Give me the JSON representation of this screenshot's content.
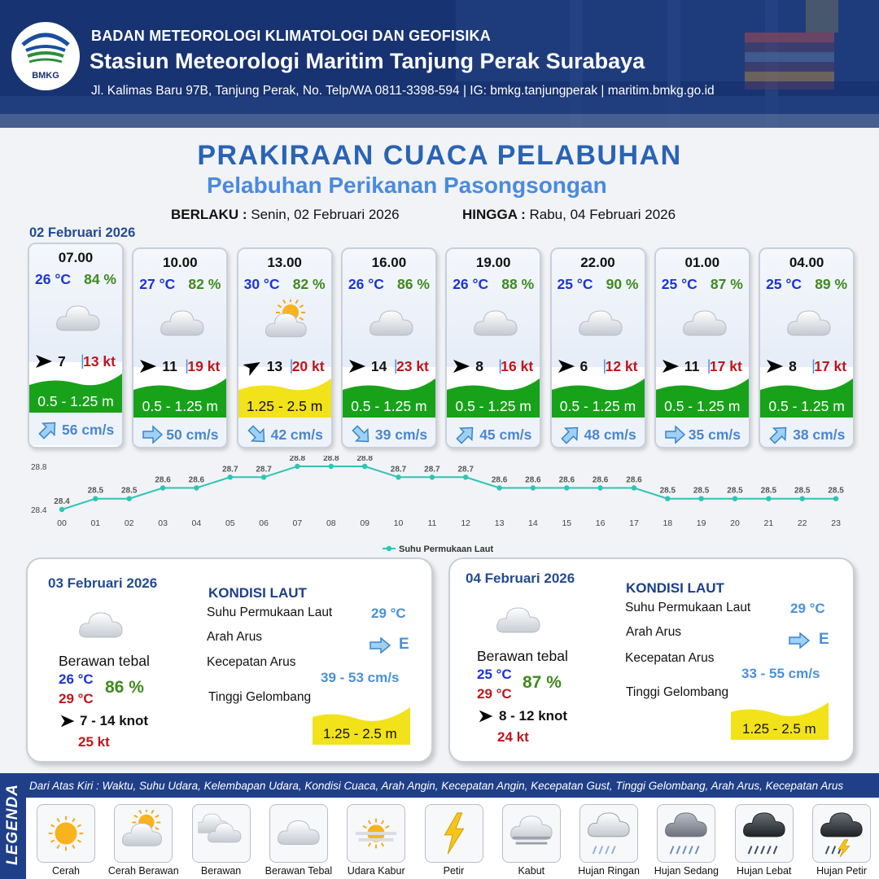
{
  "header": {
    "agency": "BADAN METEOROLOGI KLIMATOLOGI DAN GEOFISIKA",
    "station": "Stasiun Meteorologi Maritim Tanjung Perak Surabaya",
    "address": "Jl. Kalimas Baru 97B, Tanjung Perak, No. Telp/WA 0811-3398-594 | IG: bmkg.tanjungperak | maritim.bmkg.go.id",
    "logo_text": "BMKG"
  },
  "title": "PRAKIRAAN CUACA PELABUHAN",
  "subtitle": "Pelabuhan Perikanan Pasongsongan",
  "validity": {
    "from_label": "BERLAKU :",
    "from_value": "Senin, 02 Februari 2026",
    "to_label": "HINGGA :",
    "to_value": "Rabu, 04 Februari 2026"
  },
  "day1_date": "02 Februari 2026",
  "forecasts": [
    {
      "time": "07.00",
      "temp": "26 °C",
      "hum": "84 %",
      "icon": "berawan-tebal-icon",
      "wind": "7",
      "gust": "13 kt",
      "wave": "0.5 - 1.25 m",
      "wave_color": "#18a21a",
      "current": "56 cm/s",
      "cur_dir": "northeast"
    },
    {
      "time": "10.00",
      "temp": "27 °C",
      "hum": "82 %",
      "icon": "berawan-tebal-icon",
      "wind": "11",
      "gust": "19 kt",
      "wave": "0.5 - 1.25 m",
      "wave_color": "#18a21a",
      "current": "50 cm/s",
      "cur_dir": "east"
    },
    {
      "time": "13.00",
      "temp": "30 °C",
      "hum": "82 %",
      "icon": "cerah-berawan-icon",
      "wind": "13",
      "gust": "20 kt",
      "wave": "1.25 - 2.5 m",
      "wave_color": "#f2e21a",
      "current": "42 cm/s",
      "cur_dir": "southeast"
    },
    {
      "time": "16.00",
      "temp": "26 °C",
      "hum": "86 %",
      "icon": "berawan-tebal-icon",
      "wind": "14",
      "gust": "23 kt",
      "wave": "0.5 - 1.25 m",
      "wave_color": "#18a21a",
      "current": "39 cm/s",
      "cur_dir": "southeast"
    },
    {
      "time": "19.00",
      "temp": "26 °C",
      "hum": "88 %",
      "icon": "berawan-tebal-icon",
      "wind": "8",
      "gust": "16 kt",
      "wave": "0.5 - 1.25 m",
      "wave_color": "#18a21a",
      "current": "45 cm/s",
      "cur_dir": "northeast"
    },
    {
      "time": "22.00",
      "temp": "25 °C",
      "hum": "90 %",
      "icon": "berawan-tebal-icon",
      "wind": "6",
      "gust": "12 kt",
      "wave": "0.5 - 1.25 m",
      "wave_color": "#18a21a",
      "current": "48 cm/s",
      "cur_dir": "northeast"
    },
    {
      "time": "01.00",
      "temp": "25 °C",
      "hum": "87 %",
      "icon": "berawan-tebal-icon",
      "wind": "11",
      "gust": "17 kt",
      "wave": "0.5 - 1.25 m",
      "wave_color": "#18a21a",
      "current": "35 cm/s",
      "cur_dir": "east"
    },
    {
      "time": "04.00",
      "temp": "25 °C",
      "hum": "89 %",
      "icon": "berawan-tebal-icon",
      "wind": "8",
      "gust": "17 kt",
      "wave": "0.5 - 1.25 m",
      "wave_color": "#18a21a",
      "current": "38 cm/s",
      "cur_dir": "northeast"
    }
  ],
  "chart_data": {
    "type": "line",
    "categories": [
      "00",
      "01",
      "02",
      "03",
      "04",
      "05",
      "06",
      "07",
      "08",
      "09",
      "10",
      "11",
      "12",
      "13",
      "14",
      "15",
      "16",
      "17",
      "18",
      "19",
      "20",
      "21",
      "22",
      "23"
    ],
    "series": [
      {
        "name": "Suhu Permukaan Laut",
        "values": [
          28.4,
          28.5,
          28.5,
          28.6,
          28.6,
          28.7,
          28.7,
          28.8,
          28.8,
          28.8,
          28.7,
          28.7,
          28.7,
          28.6,
          28.6,
          28.6,
          28.6,
          28.6,
          28.5,
          28.5,
          28.5,
          28.5,
          28.5,
          28.5
        ],
        "color": "#2ec4b6"
      }
    ],
    "ylim": [
      28.4,
      28.8
    ],
    "yticks": [
      "28.8",
      "28.4"
    ],
    "legend": "bottom"
  },
  "days": [
    {
      "date": "03 Februari 2026",
      "icon": "berawan-tebal-icon",
      "condition": "Berawan tebal",
      "tmin": "26 °C",
      "tmax": "29 °C",
      "hum": "86 %",
      "wind": "7  - 14 knot",
      "gust": "25 kt",
      "kondisi_label": "KONDISI LAUT",
      "sst_label": "Suhu Permukaan Laut",
      "sst": "29 °C",
      "dir_label": "Arah Arus",
      "dir": "E",
      "speed_label": "Kecepatan Arus",
      "speed": "39  - 53 cm/s",
      "wave_label": "Tinggi Gelombang",
      "wave": "1.25 - 2.5 m"
    },
    {
      "date": "04 Februari 2026",
      "icon": "berawan-tebal-icon",
      "condition": "Berawan tebal",
      "tmin": "25 °C",
      "tmax": "29 °C",
      "hum": "87 %",
      "wind": "8  - 12 knot",
      "gust": "24 kt",
      "kondisi_label": "KONDISI LAUT",
      "sst_label": "Suhu Permukaan Laut",
      "sst": "29 °C",
      "dir_label": "Arah Arus",
      "dir": "E",
      "speed_label": "Kecepatan Arus",
      "speed": "33  - 55 cm/s",
      "wave_label": "Tinggi Gelombang",
      "wave": "1.25 - 2.5 m"
    }
  ],
  "legend": {
    "title": "LEGENDA",
    "description": "Dari Atas Kiri : Waktu, Suhu Udara, Kelembapan Udara, Kondisi Cuaca, Arah Angin, Kecepatan Angin, Kecepatan Gust, Tinggi Gelombang, Arah Arus, Kecepatan Arus",
    "items": [
      {
        "label": "Cerah",
        "icon": "cerah-icon"
      },
      {
        "label": "Cerah Berawan",
        "icon": "cerah-berawan-icon"
      },
      {
        "label": "Berawan",
        "icon": "berawan-icon"
      },
      {
        "label": "Berawan Tebal",
        "icon": "berawan-tebal-icon"
      },
      {
        "label": "Udara Kabur",
        "icon": "udara-kabur-icon"
      },
      {
        "label": "Petir",
        "icon": "petir-icon"
      },
      {
        "label": "Kabut",
        "icon": "kabut-icon"
      },
      {
        "label": "Hujan Ringan",
        "icon": "hujan-ringan-icon"
      },
      {
        "label": "Hujan Sedang",
        "icon": "hujan-sedang-icon"
      },
      {
        "label": "Hujan Lebat",
        "icon": "hujan-lebat-icon"
      },
      {
        "label": "Hujan Petir",
        "icon": "hujan-petir-icon"
      }
    ]
  }
}
